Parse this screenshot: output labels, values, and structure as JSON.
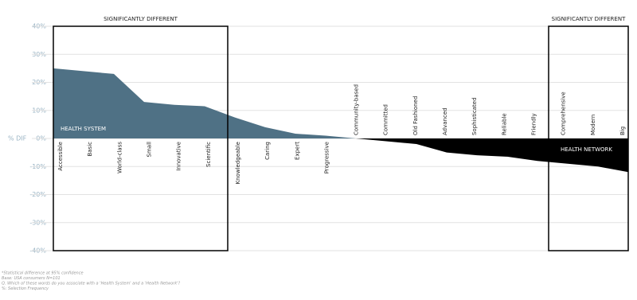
{
  "chart_data": {
    "type": "area",
    "categories": [
      "Accessible",
      "Basic",
      "World-class",
      "Small",
      "Innovative",
      "Scientific",
      "Knowledgeable",
      "Caring",
      "Expert",
      "Progressive",
      "Community-based",
      "Committed",
      "Old Fashioned",
      "Advanced",
      "Sophisticated",
      "Reliable",
      "Friendly",
      "Comprehensive",
      "Modern",
      "Big"
    ],
    "values": [
      25,
      24,
      23,
      13,
      12,
      11.5,
      7.5,
      4,
      1.7,
      1,
      0,
      -1,
      -2,
      -5,
      -6,
      -6.5,
      -8,
      -9,
      -10,
      -12
    ],
    "positive_label": "HEALTH SYSTEM",
    "negative_label": "HEALTH NETWORK",
    "positive_color": "#4f7185",
    "negative_color": "#000000",
    "ylabel": "% DIF",
    "ylim": [
      -40,
      40
    ],
    "yticks": [
      {
        "value": -40,
        "label": "-40%"
      },
      {
        "value": -30,
        "label": "-30%"
      },
      {
        "value": -20,
        "label": "-20%"
      },
      {
        "value": -10,
        "label": "-10%"
      },
      {
        "value": 0,
        "label": "0%"
      },
      {
        "value": 10,
        "label": "10%"
      },
      {
        "value": 20,
        "label": "20%"
      },
      {
        "value": 30,
        "label": "30%"
      },
      {
        "value": 40,
        "label": "40%"
      }
    ],
    "grid": true,
    "annotations": [
      "SIGNIFICANTLY DIFFERENT",
      "SIGNIFICANTLY DIFFERENT"
    ],
    "footnotes": [
      "*Statistical difference at 95% confidence",
      "Base: USA consumers N=101",
      "Q. Which of these words do you associate with a 'Health System' and a 'Health Network'?",
      "%: Selection Frequency"
    ]
  }
}
